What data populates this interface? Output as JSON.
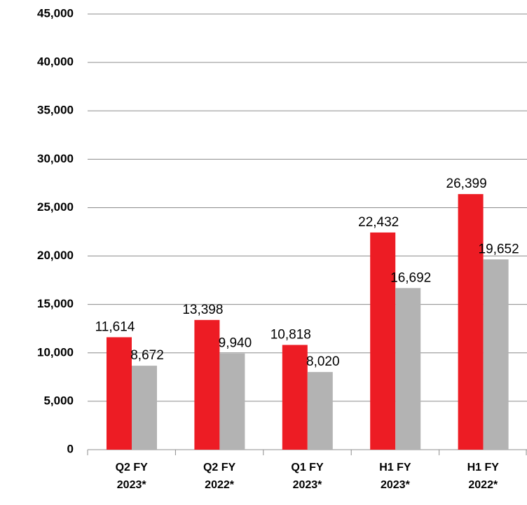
{
  "chart_data": {
    "type": "bar",
    "categories": [
      "Q2 FY 2023*",
      "Q2 FY 2022*",
      "Q1 FY 2023*",
      "H1 FY 2023*",
      "H1 FY 2022*"
    ],
    "series": [
      {
        "color": "#ed1c24",
        "values": [
          11614,
          13398,
          10818,
          22432,
          26399
        ],
        "value_labels": [
          "11,614",
          "13,398",
          "10,818",
          "22,432",
          "26,399"
        ]
      },
      {
        "color": "#b3b3b3",
        "values": [
          8672,
          9940,
          8020,
          16692,
          19652
        ],
        "value_labels": [
          "8,672",
          "9,940",
          "8,020",
          "16,692",
          "19,652"
        ]
      }
    ],
    "ylim": [
      0,
      45000
    ],
    "yticks": [
      0,
      {
        "value": 5000,
        "label": "5,000"
      },
      {
        "value": 10000,
        "label": "10,000"
      },
      {
        "value": 15000,
        "label": "15,000"
      },
      {
        "value": 20000,
        "label": "20,000"
      },
      {
        "value": 25000,
        "label": "25,000"
      },
      {
        "value": 30000,
        "label": "30,000"
      },
      {
        "value": 35000,
        "label": "35,000"
      },
      {
        "value": 40000,
        "label": "40,000"
      },
      {
        "value": 45000,
        "label": "45,000"
      }
    ],
    "grid": true
  }
}
